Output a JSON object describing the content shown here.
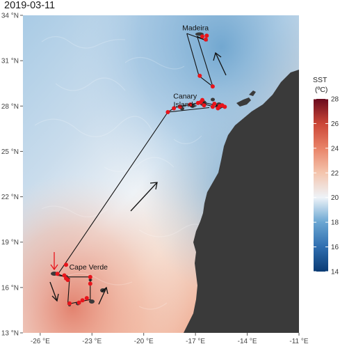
{
  "title": "2019-03-11",
  "map": {
    "lon_range": [
      -27,
      -11
    ],
    "lat_range": [
      13,
      34
    ],
    "lon_ticks": [
      {
        "value": -26,
        "label": "-26 °E"
      },
      {
        "value": -23,
        "label": "-23 °E"
      },
      {
        "value": -20,
        "label": "-20 °E"
      },
      {
        "value": -17,
        "label": "-17 °E"
      },
      {
        "value": -14,
        "label": "-14 °E"
      },
      {
        "value": -11,
        "label": "-11 °E"
      }
    ],
    "lat_ticks": [
      {
        "value": 13,
        "label": "13 °N"
      },
      {
        "value": 16,
        "label": "16 °N"
      },
      {
        "value": 19,
        "label": "19 °N"
      },
      {
        "value": 22,
        "label": "22 °N"
      },
      {
        "value": 25,
        "label": "25 °N"
      },
      {
        "value": 28,
        "label": "28 °N"
      },
      {
        "value": 31,
        "label": "31 °N"
      },
      {
        "value": 34,
        "label": "34 °N"
      }
    ],
    "places": [
      {
        "name": "Madeira",
        "lon": -17.0,
        "lat": 33.0
      },
      {
        "name": "Canary",
        "lon": -17.6,
        "lat": 28.5
      },
      {
        "name": "Islands",
        "lon": -17.6,
        "lat": 27.95
      },
      {
        "name": "Cape Verde",
        "lon": -23.2,
        "lat": 17.2
      }
    ],
    "track": [
      [
        -17.5,
        32.8
      ],
      [
        -16.3,
        32.3
      ],
      [
        -16.9,
        32.6
      ],
      [
        -16.0,
        29.3
      ],
      [
        -16.8,
        30.0
      ],
      [
        -17.5,
        32.8
      ]
    ],
    "track_main": [
      [
        -18.6,
        27.6
      ],
      [
        -16.2,
        27.9
      ],
      [
        -18.6,
        27.6
      ],
      [
        -24.9,
        17.0
      ],
      [
        -25.0,
        16.8
      ],
      [
        -24.4,
        16.7
      ],
      [
        -23.1,
        16.7
      ],
      [
        -23.1,
        15.2
      ],
      [
        -24.4,
        14.9
      ],
      [
        -24.3,
        16.6
      ],
      [
        -25.0,
        16.9
      ]
    ],
    "track_canary": [
      [
        -18.6,
        27.6
      ],
      [
        -18.2,
        27.9
      ],
      [
        -17.8,
        28.0
      ],
      [
        -17.3,
        28.1
      ],
      [
        -16.9,
        28.2
      ],
      [
        -16.6,
        28.35
      ],
      [
        -16.4,
        28.1
      ],
      [
        -15.9,
        27.95
      ],
      [
        -15.6,
        28.0
      ],
      [
        -15.4,
        27.9
      ],
      [
        -15.8,
        28.05
      ],
      [
        -16.4,
        28.2
      ]
    ],
    "positions": [
      [
        -16.0,
        29.3
      ],
      [
        -16.75,
        30.0
      ],
      [
        -16.6,
        32.6
      ],
      [
        -16.4,
        32.4
      ],
      [
        -16.35,
        32.65
      ],
      [
        -18.6,
        27.6
      ],
      [
        -18.25,
        27.85
      ],
      [
        -17.9,
        27.95
      ],
      [
        -17.3,
        28.1
      ],
      [
        -16.85,
        28.2
      ],
      [
        -16.7,
        28.25
      ],
      [
        -16.6,
        28.4
      ],
      [
        -16.5,
        28.05
      ],
      [
        -16.0,
        27.95
      ],
      [
        -15.7,
        27.85
      ],
      [
        -15.6,
        28.0
      ],
      [
        -15.45,
        28.05
      ],
      [
        -15.3,
        27.95
      ],
      [
        -15.9,
        28.15
      ],
      [
        -24.5,
        17.5
      ],
      [
        -25.0,
        16.9
      ],
      [
        -24.6,
        16.8
      ],
      [
        -24.4,
        16.5
      ],
      [
        -23.1,
        16.7
      ],
      [
        -23.1,
        16.25
      ],
      [
        -23.3,
        15.3
      ],
      [
        -23.55,
        15.15
      ],
      [
        -24.3,
        14.95
      ],
      [
        -24.5,
        16.6
      ],
      [
        -23.75,
        15.0
      ]
    ],
    "colors": {
      "track": "#111111",
      "position": "#e8141b",
      "land": "#3a3a3a",
      "red_arrow": "#e8141b"
    }
  },
  "legend": {
    "title_line1": "SST",
    "title_line2": "(ºC)",
    "ticks": [
      {
        "value": 14,
        "label": "14"
      },
      {
        "value": 16,
        "label": "16"
      },
      {
        "value": 18,
        "label": "18"
      },
      {
        "value": 20,
        "label": "20"
      },
      {
        "value": 22,
        "label": "22"
      },
      {
        "value": 24,
        "label": "24"
      },
      {
        "value": 26,
        "label": "26"
      },
      {
        "value": 28,
        "label": "28"
      }
    ],
    "range": [
      14,
      28
    ],
    "stops": [
      {
        "value": 14,
        "color": "#0a3b74"
      },
      {
        "value": 16,
        "color": "#2f6eb0"
      },
      {
        "value": 18,
        "color": "#6aa6d2"
      },
      {
        "value": 20,
        "color": "#eef3f8"
      },
      {
        "value": 22,
        "color": "#f4c5ae"
      },
      {
        "value": 24,
        "color": "#e98368"
      },
      {
        "value": 26,
        "color": "#cb4637"
      },
      {
        "value": 28,
        "color": "#690a1d"
      }
    ]
  }
}
